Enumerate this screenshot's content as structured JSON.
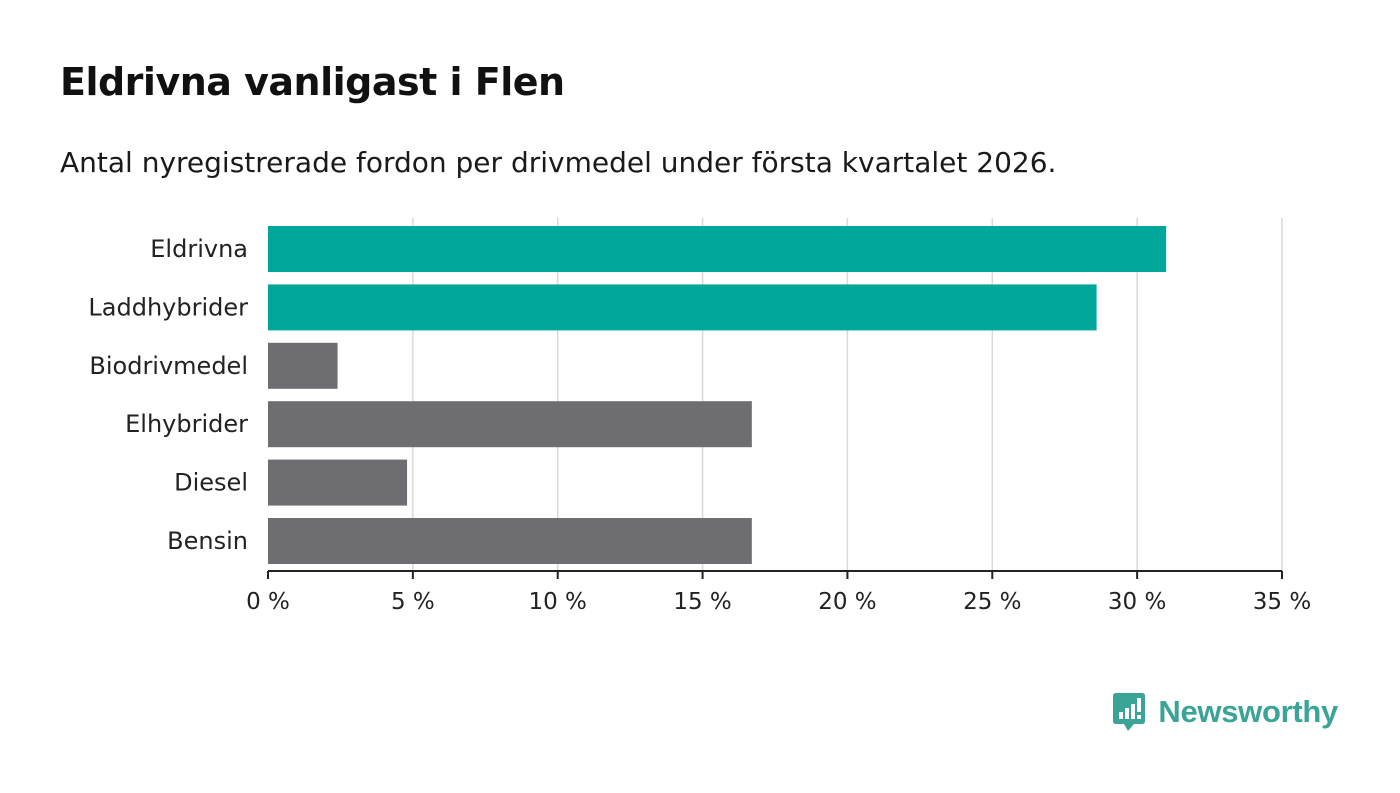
{
  "chart_data": {
    "type": "bar",
    "orientation": "horizontal",
    "title": "Eldrivna vanligast i Flen",
    "subtitle": "Antal nyregistrerade fordon per drivmedel under första kvartalet 2026.",
    "categories": [
      "Eldrivna",
      "Laddhybrider",
      "Biodrivmedel",
      "Elhybrider",
      "Diesel",
      "Bensin"
    ],
    "values": [
      31.0,
      28.6,
      2.4,
      16.7,
      4.8,
      16.7
    ],
    "highlighted": [
      true,
      true,
      false,
      false,
      false,
      false
    ],
    "xlim": [
      0,
      35
    ],
    "xticks": [
      0,
      5,
      10,
      15,
      20,
      25,
      30,
      35
    ],
    "xtick_labels": [
      "0 %",
      "5 %",
      "10 %",
      "15 %",
      "20 %",
      "25 %",
      "30 %",
      "35 %"
    ],
    "xlabel": "",
    "ylabel": "",
    "grid": true,
    "colors": {
      "highlight": "#00a69a",
      "default": "#6e6d72",
      "grid": "#d9d9d9",
      "axis": "#222222"
    }
  },
  "brand": {
    "name": "Newsworthy",
    "icon": "newsworthy-logo-icon",
    "color": "#3aa597"
  }
}
